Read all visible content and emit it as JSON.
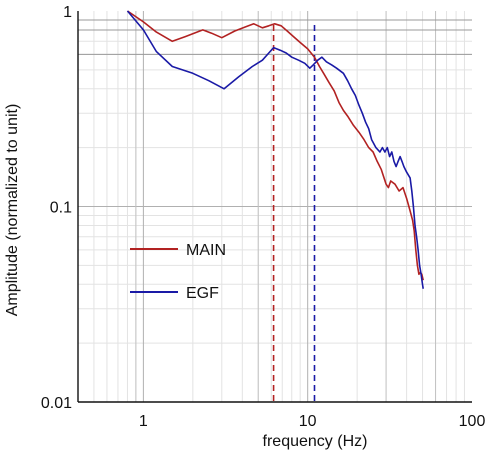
{
  "chart_data": {
    "type": "line",
    "xscale": "log",
    "yscale": "log",
    "xlim": [
      0.4,
      100
    ],
    "ylim": [
      0.01,
      1
    ],
    "xlabel": "frequency (Hz)",
    "ylabel": "Amplitude (normalized to unit)",
    "x_ticks": [
      {
        "value": 1,
        "label": "1"
      },
      {
        "value": 10,
        "label": "10"
      },
      {
        "value": 100,
        "label": "100"
      }
    ],
    "y_ticks": [
      {
        "value": 0.01,
        "label": "0.01"
      },
      {
        "value": 0.1,
        "label": "0.1"
      },
      {
        "value": 1,
        "label": "1"
      }
    ],
    "grid": true,
    "legend_position": "left-middle",
    "series": [
      {
        "name": "MAIN",
        "color": "#b22222",
        "points": [
          [
            0.8,
            1.0
          ],
          [
            1.0,
            0.88
          ],
          [
            1.2,
            0.78
          ],
          [
            1.5,
            0.7
          ],
          [
            1.8,
            0.74
          ],
          [
            2.3,
            0.8
          ],
          [
            2.6,
            0.77
          ],
          [
            3.0,
            0.73
          ],
          [
            3.6,
            0.79
          ],
          [
            4.2,
            0.83
          ],
          [
            4.7,
            0.86
          ],
          [
            5.3,
            0.82
          ],
          [
            5.8,
            0.84
          ],
          [
            6.3,
            0.86
          ],
          [
            6.9,
            0.84
          ],
          [
            7.5,
            0.79
          ],
          [
            8.2,
            0.74
          ],
          [
            9.0,
            0.69
          ],
          [
            10.0,
            0.64
          ],
          [
            11.0,
            0.58
          ],
          [
            11.8,
            0.52
          ],
          [
            12.5,
            0.48
          ],
          [
            13.5,
            0.43
          ],
          [
            14.5,
            0.39
          ],
          [
            15.5,
            0.34
          ],
          [
            16.5,
            0.31
          ],
          [
            17.5,
            0.29
          ],
          [
            19.0,
            0.26
          ],
          [
            20.5,
            0.24
          ],
          [
            22.0,
            0.22
          ],
          [
            23.5,
            0.2
          ],
          [
            25.0,
            0.19
          ],
          [
            26.5,
            0.17
          ],
          [
            28.0,
            0.155
          ],
          [
            30.0,
            0.13
          ],
          [
            31.0,
            0.125
          ],
          [
            32.0,
            0.135
          ],
          [
            34.0,
            0.13
          ],
          [
            36.0,
            0.12
          ],
          [
            38.0,
            0.125
          ],
          [
            40.0,
            0.11
          ],
          [
            42.0,
            0.095
          ],
          [
            43.5,
            0.085
          ],
          [
            44.5,
            0.075
          ],
          [
            45.5,
            0.06
          ],
          [
            46.5,
            0.05
          ],
          [
            47.5,
            0.045
          ],
          [
            48.5,
            0.046
          ],
          [
            49.5,
            0.045
          ],
          [
            50.5,
            0.042
          ]
        ]
      },
      {
        "name": "EGF",
        "color": "#1a1aa6",
        "points": [
          [
            0.8,
            1.0
          ],
          [
            1.0,
            0.8
          ],
          [
            1.2,
            0.62
          ],
          [
            1.5,
            0.52
          ],
          [
            2.0,
            0.48
          ],
          [
            2.5,
            0.44
          ],
          [
            3.1,
            0.4
          ],
          [
            3.8,
            0.46
          ],
          [
            4.6,
            0.52
          ],
          [
            5.3,
            0.56
          ],
          [
            5.8,
            0.61
          ],
          [
            6.2,
            0.65
          ],
          [
            6.8,
            0.63
          ],
          [
            7.4,
            0.61
          ],
          [
            8.0,
            0.58
          ],
          [
            8.8,
            0.56
          ],
          [
            9.6,
            0.54
          ],
          [
            10.3,
            0.51
          ],
          [
            10.8,
            0.53
          ],
          [
            11.5,
            0.56
          ],
          [
            12.2,
            0.58
          ],
          [
            13.0,
            0.55
          ],
          [
            14.0,
            0.53
          ],
          [
            15.0,
            0.51
          ],
          [
            16.5,
            0.48
          ],
          [
            17.5,
            0.44
          ],
          [
            18.5,
            0.4
          ],
          [
            19.5,
            0.37
          ],
          [
            20.5,
            0.33
          ],
          [
            21.5,
            0.3
          ],
          [
            22.5,
            0.27
          ],
          [
            23.5,
            0.25
          ],
          [
            24.5,
            0.22
          ],
          [
            26.0,
            0.2
          ],
          [
            27.5,
            0.19
          ],
          [
            28.5,
            0.2
          ],
          [
            29.5,
            0.19
          ],
          [
            30.5,
            0.2
          ],
          [
            31.5,
            0.18
          ],
          [
            32.5,
            0.19
          ],
          [
            33.5,
            0.17
          ],
          [
            34.5,
            0.16
          ],
          [
            35.5,
            0.17
          ],
          [
            36.5,
            0.18
          ],
          [
            37.5,
            0.17
          ],
          [
            38.5,
            0.16
          ],
          [
            40.0,
            0.15
          ],
          [
            42.0,
            0.14
          ],
          [
            43.0,
            0.12
          ],
          [
            44.0,
            0.1
          ],
          [
            45.0,
            0.08
          ],
          [
            46.0,
            0.07
          ],
          [
            47.0,
            0.06
          ],
          [
            48.0,
            0.05
          ],
          [
            49.0,
            0.045
          ],
          [
            50.0,
            0.04
          ],
          [
            50.5,
            0.038
          ]
        ]
      }
    ],
    "markers": [
      {
        "x": 6.2,
        "color": "#b22222",
        "style": "dashed"
      },
      {
        "x": 11.0,
        "color": "#1a1aa6",
        "style": "dashed"
      }
    ],
    "reference_lines_y": [
      0.9,
      0.8,
      0.6
    ]
  }
}
